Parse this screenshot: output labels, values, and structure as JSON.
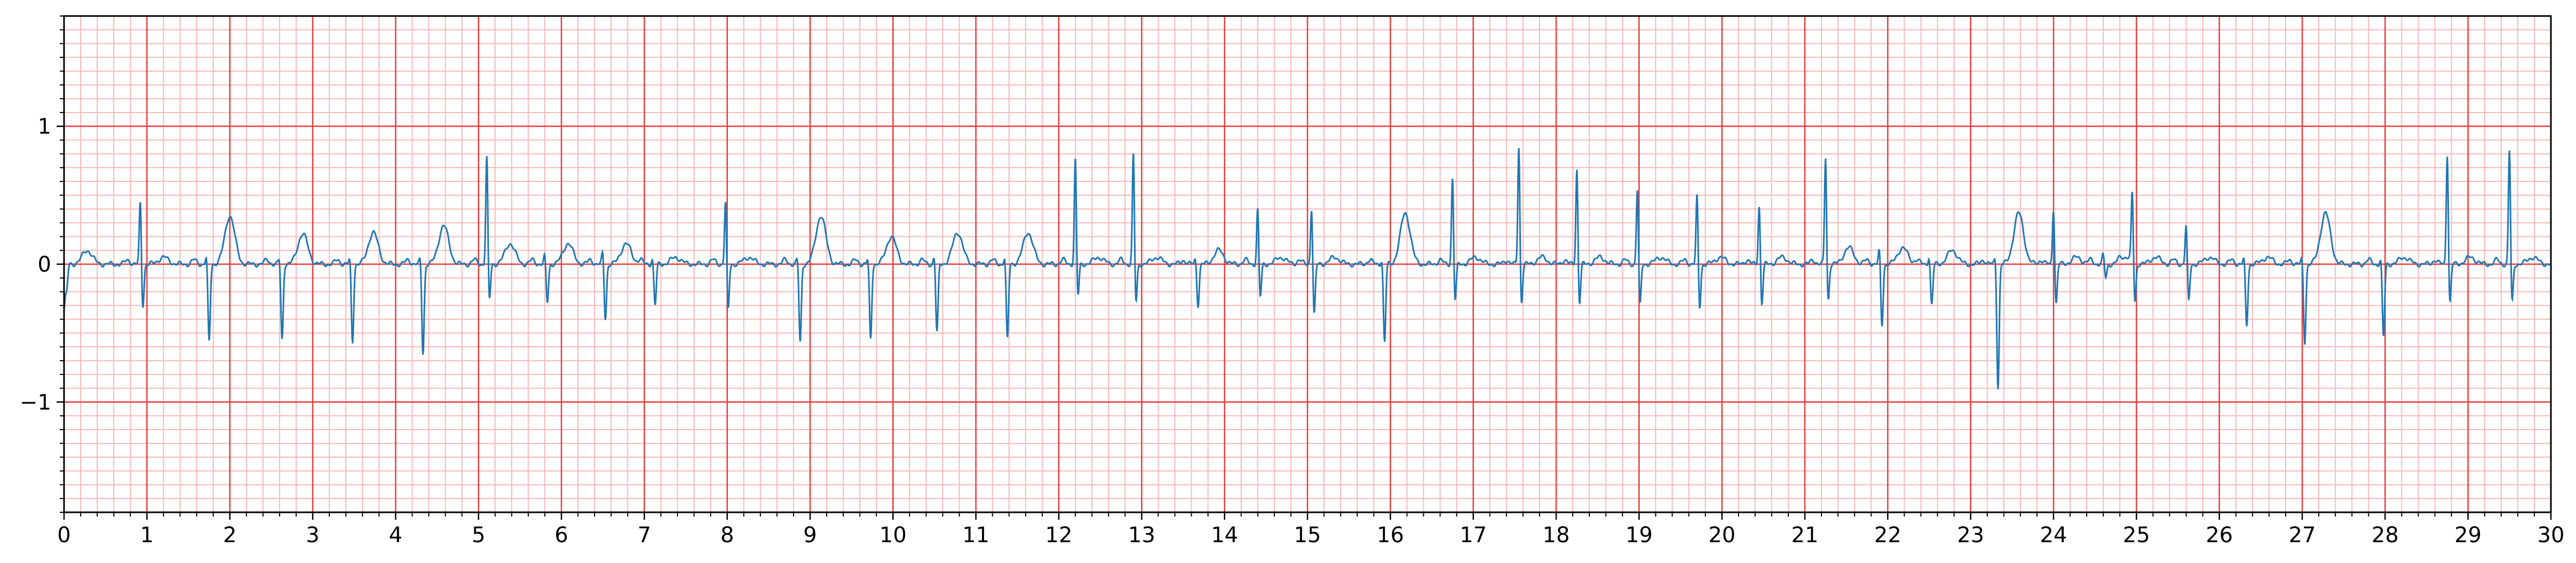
{
  "chart_data": {
    "type": "line",
    "title": "",
    "xlabel": "",
    "ylabel": "",
    "xlim": [
      0,
      30
    ],
    "ylim": [
      -1.8,
      1.8
    ],
    "x_ticks": [
      0,
      1,
      2,
      3,
      4,
      5,
      6,
      7,
      8,
      9,
      10,
      11,
      12,
      13,
      14,
      15,
      16,
      17,
      18,
      19,
      20,
      21,
      22,
      23,
      24,
      25,
      26,
      27,
      28,
      29,
      30
    ],
    "x_tick_labels": [
      "0",
      "1",
      "2",
      "3",
      "4",
      "5",
      "6",
      "7",
      "8",
      "9",
      "10",
      "11",
      "12",
      "13",
      "14",
      "15",
      "16",
      "17",
      "18",
      "19",
      "20",
      "21",
      "22",
      "23",
      "24",
      "25",
      "26",
      "27",
      "28",
      "29",
      "30"
    ],
    "y_ticks": [
      1,
      0,
      -1
    ],
    "y_tick_labels": [
      "1",
      "0",
      "−1"
    ],
    "grid": {
      "major": true,
      "minor": true,
      "major_x_step": 1,
      "minor_x_step": 0.2,
      "major_y_step": 1,
      "minor_y_step": 0.1,
      "major_color": "#e83a3a",
      "minor_color": "#f7b8b8"
    },
    "line_color": "#1f77b4",
    "beats": [
      {
        "t": 0.0,
        "r": -0.3,
        "s": -0.2,
        "tw": 0.1,
        "pt": 0.0
      },
      {
        "t": 0.92,
        "r": 0.47,
        "s": -0.32,
        "tw": 0.05,
        "pt": 0.0
      },
      {
        "t": 1.72,
        "r": 0.07,
        "s": -0.57,
        "tw": 0.35,
        "pt": 0.0
      },
      {
        "t": 2.6,
        "r": 0.05,
        "s": -0.55,
        "tw": 0.22,
        "pt": 0.0
      },
      {
        "t": 3.45,
        "r": 0.05,
        "s": -0.57,
        "tw": 0.23,
        "pt": 0.0
      },
      {
        "t": 4.3,
        "r": 0.05,
        "s": -0.65,
        "tw": 0.28,
        "pt": 0.0
      },
      {
        "t": 5.1,
        "r": 0.8,
        "s": -0.28,
        "tw": 0.15,
        "pt": 0.0
      },
      {
        "t": 5.8,
        "r": 0.07,
        "s": -0.28,
        "tw": 0.15,
        "pt": 0.0
      },
      {
        "t": 6.5,
        "r": 0.1,
        "s": -0.4,
        "tw": 0.15,
        "pt": 0.0
      },
      {
        "t": 7.1,
        "r": 0.05,
        "s": -0.3,
        "tw": 0.05,
        "pt": 0.0
      },
      {
        "t": 7.98,
        "r": 0.48,
        "s": -0.35,
        "tw": 0.05,
        "pt": 0.0
      },
      {
        "t": 8.85,
        "r": 0.05,
        "s": -0.57,
        "tw": 0.35,
        "pt": 0.0
      },
      {
        "t": 9.7,
        "r": 0.05,
        "s": -0.55,
        "tw": 0.2,
        "pt": 0.0
      },
      {
        "t": 10.5,
        "r": 0.07,
        "s": -0.5,
        "tw": 0.23,
        "pt": 0.0
      },
      {
        "t": 11.35,
        "r": 0.07,
        "s": -0.55,
        "tw": 0.23,
        "pt": 0.0
      },
      {
        "t": 12.2,
        "r": 0.78,
        "s": -0.25,
        "tw": 0.05,
        "pt": 0.0
      },
      {
        "t": 12.9,
        "r": 0.82,
        "s": -0.3,
        "tw": 0.05,
        "pt": 0.0
      },
      {
        "t": 13.65,
        "r": 0.05,
        "s": -0.3,
        "tw": 0.1,
        "pt": 0.0
      },
      {
        "t": 14.4,
        "r": 0.42,
        "s": -0.25,
        "tw": 0.05,
        "pt": 0.0
      },
      {
        "t": 15.05,
        "r": 0.44,
        "s": -0.38,
        "tw": 0.05,
        "pt": 0.0
      },
      {
        "t": 15.9,
        "r": 0.05,
        "s": -0.57,
        "tw": 0.37,
        "pt": 0.0
      },
      {
        "t": 16.75,
        "r": 0.65,
        "s": -0.28,
        "tw": 0.05,
        "pt": 0.0
      },
      {
        "t": 17.55,
        "r": 0.88,
        "s": -0.3,
        "tw": 0.05,
        "pt": 0.0
      },
      {
        "t": 18.25,
        "r": 0.72,
        "s": -0.3,
        "tw": 0.05,
        "pt": 0.0
      },
      {
        "t": 18.98,
        "r": 0.57,
        "s": -0.32,
        "tw": 0.05,
        "pt": 0.0
      },
      {
        "t": 19.7,
        "r": 0.52,
        "s": -0.33,
        "tw": 0.05,
        "pt": 0.0
      },
      {
        "t": 20.45,
        "r": 0.45,
        "s": -0.3,
        "tw": 0.05,
        "pt": 0.0
      },
      {
        "t": 21.25,
        "r": 0.8,
        "s": -0.28,
        "tw": 0.12,
        "pt": 0.0
      },
      {
        "t": 21.9,
        "r": 0.12,
        "s": -0.45,
        "tw": 0.12,
        "pt": 0.0
      },
      {
        "t": 22.5,
        "r": 0.07,
        "s": -0.3,
        "tw": 0.1,
        "pt": 0.0
      },
      {
        "t": 23.3,
        "r": 0.07,
        "s": -0.9,
        "tw": 0.37,
        "pt": 0.0
      },
      {
        "t": 24.0,
        "r": 0.43,
        "s": -0.3,
        "tw": 0.05,
        "pt": 0.0
      },
      {
        "t": 24.6,
        "r": 0.07,
        "s": -0.1,
        "tw": 0.05,
        "pt": 0.0
      },
      {
        "t": 24.95,
        "r": 0.52,
        "s": -0.3,
        "tw": 0.05,
        "pt": 0.0
      },
      {
        "t": 25.6,
        "r": 0.3,
        "s": -0.28,
        "tw": 0.05,
        "pt": 0.0
      },
      {
        "t": 26.3,
        "r": 0.05,
        "s": -0.45,
        "tw": 0.05,
        "pt": 0.0
      },
      {
        "t": 27.0,
        "r": 0.05,
        "s": -0.57,
        "tw": 0.37,
        "pt": 0.0
      },
      {
        "t": 27.95,
        "r": 0.05,
        "s": -0.53,
        "tw": 0.05,
        "pt": 0.0
      },
      {
        "t": 28.75,
        "r": 0.83,
        "s": -0.3,
        "tw": 0.05,
        "pt": 0.0
      },
      {
        "t": 29.5,
        "r": 0.85,
        "s": -0.3,
        "tw": 0.05,
        "pt": 0.0
      }
    ]
  }
}
